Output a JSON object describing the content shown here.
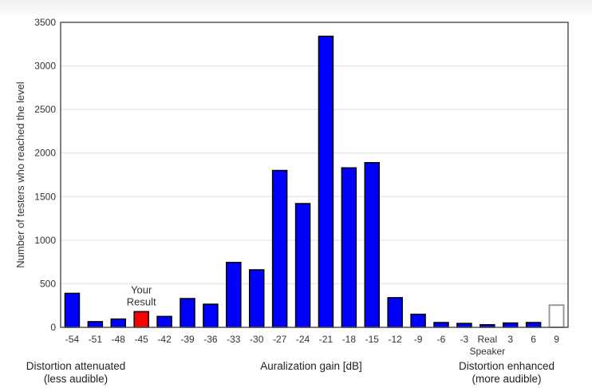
{
  "chart_data": {
    "type": "bar",
    "ylabel": "Number of testers who reached the level",
    "xlabel": "Auralization gain [dB]",
    "ylim": [
      0,
      3500
    ],
    "yticks": [
      0,
      500,
      1000,
      1500,
      2000,
      2500,
      3000,
      3500
    ],
    "grid": "horizontal",
    "categories": [
      "-54",
      "-51",
      "-48",
      "-45",
      "-42",
      "-39",
      "-36",
      "-33",
      "-30",
      "-27",
      "-24",
      "-21",
      "-18",
      "-15",
      "-12",
      "-9",
      "-6",
      "-3",
      "Real Speaker",
      "3",
      "6",
      "9"
    ],
    "values": [
      390,
      65,
      95,
      180,
      125,
      330,
      265,
      745,
      660,
      1800,
      1420,
      3340,
      1830,
      1890,
      340,
      150,
      55,
      45,
      30,
      50,
      55,
      255
    ],
    "highlight_index": 3,
    "highlight_label": [
      "Your",
      "Result"
    ],
    "hollow_index": 21,
    "colors": {
      "bar": "#0000ff",
      "highlight": "#ff0000",
      "hollow_outline": "#999999",
      "grid": "#dddddd",
      "axis": "#555555"
    }
  },
  "captions": {
    "left_line1": "Distortion attenuated",
    "left_line2": "(less audible)",
    "center": "Auralization gain [dB]",
    "right_line1": "Distortion enhanced",
    "right_line2": "(more audible)"
  }
}
